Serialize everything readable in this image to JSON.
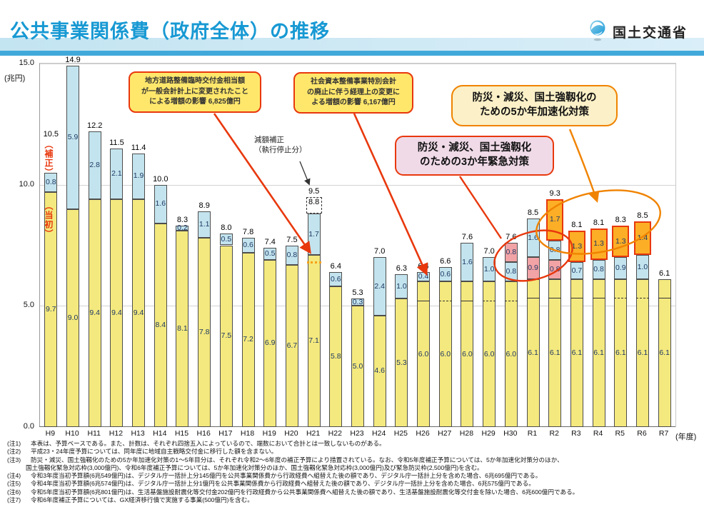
{
  "header": {
    "title": "公共事業関係費（政府全体）の推移",
    "logo_text": "国土交通省"
  },
  "chart_data": {
    "type": "bar",
    "stacked": true,
    "title": "公共事業関係費（政府全体）の推移",
    "y_axis": {
      "unit": "(兆円)",
      "ylim": [
        0,
        15
      ],
      "ticks": [
        {
          "v": 15,
          "label": "15.0"
        },
        {
          "v": 10,
          "label": "10.0"
        },
        {
          "v": 5,
          "label": "5.0"
        },
        {
          "v": 0,
          "label": "0.0"
        }
      ]
    },
    "x_axis_suffix": "(年度)",
    "legend": {
      "hosei": "（補正）",
      "initial": "（当初）"
    },
    "segment_kinds": {
      "initial": "当初",
      "hosei": "補正",
      "kinkyu": "3か年緊急対策",
      "kasoku": "5か年加速化対策"
    },
    "colors": {
      "initial": "#f4e97e",
      "hosei": "#c3e4ee",
      "kinkyu": "#f2a3a6",
      "kasoku": "#fcae26",
      "kasoku_border": "#e8380d",
      "accent_red": "#e8380d",
      "accent_orange": "#f08300",
      "title_blue": "#1899d3"
    },
    "bars": [
      {
        "year": "H9",
        "total": "10.5",
        "total_raise": 46,
        "segments": [
          {
            "kind": "initial",
            "value": 9.7,
            "label": "9.7"
          },
          {
            "kind": "hosei",
            "value": 0.8,
            "label": "0.8"
          }
        ]
      },
      {
        "year": "H10",
        "total": "14.9",
        "segments": [
          {
            "kind": "initial",
            "value": 9.0,
            "label": "9.0"
          },
          {
            "kind": "hosei",
            "value": 5.9,
            "label": "5.9"
          }
        ]
      },
      {
        "year": "H11",
        "total": "12.2",
        "segments": [
          {
            "kind": "initial",
            "value": 9.4,
            "label": "9.4"
          },
          {
            "kind": "hosei",
            "value": 2.8,
            "label": "2.8"
          }
        ]
      },
      {
        "year": "H12",
        "total": "11.5",
        "segments": [
          {
            "kind": "initial",
            "value": 9.4,
            "label": "9.4"
          },
          {
            "kind": "hosei",
            "value": 2.1,
            "label": "2.1"
          }
        ]
      },
      {
        "year": "H13",
        "total": "11.4",
        "segments": [
          {
            "kind": "initial",
            "value": 9.4,
            "label": "9.4"
          },
          {
            "kind": "hosei",
            "value": 1.9,
            "label": "1.9"
          }
        ]
      },
      {
        "year": "H14",
        "total": "10.0",
        "segments": [
          {
            "kind": "initial",
            "value": 8.4,
            "label": "8.4"
          },
          {
            "kind": "hosei",
            "value": 1.6,
            "label": "1.6"
          }
        ]
      },
      {
        "year": "H15",
        "total": "8.3",
        "segments": [
          {
            "kind": "initial",
            "value": 8.1,
            "label": "8.1"
          },
          {
            "kind": "hosei",
            "value": 0.2,
            "label": "0.2"
          }
        ]
      },
      {
        "year": "H16",
        "total": "8.9",
        "segments": [
          {
            "kind": "initial",
            "value": 7.8,
            "label": "7.8"
          },
          {
            "kind": "hosei",
            "value": 1.1,
            "label": "1.1"
          }
        ]
      },
      {
        "year": "H17",
        "total": "8.0",
        "segments": [
          {
            "kind": "initial",
            "value": 7.5,
            "label": "7.5"
          },
          {
            "kind": "hosei",
            "value": 0.5,
            "label": "0.5"
          }
        ]
      },
      {
        "year": "H18",
        "total": "7.8",
        "segments": [
          {
            "kind": "initial",
            "value": 7.2,
            "label": "7.2"
          },
          {
            "kind": "hosei",
            "value": 0.6,
            "label": "0.6"
          }
        ]
      },
      {
        "year": "H19",
        "total": "7.4",
        "segments": [
          {
            "kind": "initial",
            "value": 6.9,
            "label": "6.9"
          },
          {
            "kind": "hosei",
            "value": 0.5,
            "label": "0.5"
          }
        ]
      },
      {
        "year": "H20",
        "total": "7.5",
        "segments": [
          {
            "kind": "initial",
            "value": 6.7,
            "label": "6.7"
          },
          {
            "kind": "hosei",
            "value": 0.8,
            "label": "0.8"
          }
        ]
      },
      {
        "year": "H21",
        "total": "9.5",
        "orange_dots": true,
        "ghost": {
          "value": 0.7,
          "label": "8.8"
        },
        "segments": [
          {
            "kind": "initial",
            "value": 7.1,
            "label": "7.1"
          },
          {
            "kind": "hosei",
            "value": 1.7,
            "label": "1.7"
          }
        ]
      },
      {
        "year": "H22",
        "total": "6.4",
        "segments": [
          {
            "kind": "initial",
            "value": 5.8,
            "label": "5.8"
          },
          {
            "kind": "hosei",
            "value": 0.6,
            "label": "0.6"
          }
        ]
      },
      {
        "year": "H23",
        "total": "5.3",
        "segments": [
          {
            "kind": "initial",
            "value": 5.0,
            "label": "5.0"
          },
          {
            "kind": "hosei",
            "value": 0.3,
            "label": "0.3"
          }
        ]
      },
      {
        "year": "H24",
        "total": "7.0",
        "segments": [
          {
            "kind": "initial",
            "value": 4.6,
            "label": "4.6"
          },
          {
            "kind": "hosei",
            "value": 2.4,
            "label": "2.4"
          }
        ]
      },
      {
        "year": "H25",
        "total": "6.3",
        "segments": [
          {
            "kind": "initial",
            "value": 5.3,
            "label": "5.3"
          },
          {
            "kind": "hosei",
            "value": 1.0,
            "label": "1.0"
          }
        ]
      },
      {
        "year": "H26",
        "total": "6.4",
        "divider": "solid",
        "segments": [
          {
            "kind": "initial",
            "value": 6.0,
            "label": "6.0"
          },
          {
            "kind": "hosei",
            "value": 0.4,
            "label": "0.4"
          }
        ]
      },
      {
        "year": "H27",
        "total": "6.6",
        "divider": "dashed",
        "segments": [
          {
            "kind": "initial",
            "value": 6.0,
            "label": "6.0"
          },
          {
            "kind": "hosei",
            "value": 0.6,
            "label": "0.6"
          }
        ]
      },
      {
        "year": "H28",
        "total": "7.6",
        "divider": "solid",
        "segments": [
          {
            "kind": "initial",
            "value": 6.0,
            "label": "6.0"
          },
          {
            "kind": "hosei",
            "value": 1.6,
            "label": "1.6"
          }
        ]
      },
      {
        "year": "H29",
        "total": "7.0",
        "divider": "dashed",
        "segments": [
          {
            "kind": "initial",
            "value": 6.0,
            "label": "6.0"
          },
          {
            "kind": "hosei",
            "value": 1.0,
            "label": "1.0"
          }
        ]
      },
      {
        "year": "H30",
        "total": "7.6",
        "divider": "dashed",
        "segments": [
          {
            "kind": "initial",
            "value": 6.0,
            "label": "6.0"
          },
          {
            "kind": "hosei",
            "value": 0.8,
            "label": "0.8"
          },
          {
            "kind": "kinkyu",
            "value": 0.8,
            "label": "0.8"
          }
        ]
      },
      {
        "year": "R1",
        "total": "8.5",
        "divider": "solid",
        "segments": [
          {
            "kind": "initial",
            "value": 6.1,
            "label": "6.1"
          },
          {
            "kind": "kinkyu",
            "value": 0.9,
            "label": "0.9"
          },
          {
            "kind": "hosei",
            "value": 1.6,
            "label": "1.6"
          }
        ]
      },
      {
        "year": "R2",
        "total": "9.3",
        "divider": "solid",
        "segments": [
          {
            "kind": "initial",
            "value": 6.1,
            "label": "6.1"
          },
          {
            "kind": "kinkyu",
            "value": 0.8,
            "label": "0.8"
          },
          {
            "kind": "hosei",
            "value": 0.8,
            "label": "0.8"
          },
          {
            "kind": "kasoku",
            "value": 1.7,
            "label": "1.7"
          }
        ]
      },
      {
        "year": "R3",
        "total": "8.1",
        "divider": "solid",
        "segments": [
          {
            "kind": "initial",
            "value": 6.1,
            "label": "6.1"
          },
          {
            "kind": "hosei",
            "value": 0.7,
            "label": "0.7"
          },
          {
            "kind": "kasoku",
            "value": 1.3,
            "label": "1.3"
          }
        ]
      },
      {
        "year": "R4",
        "total": "8.1",
        "divider": "solid",
        "segments": [
          {
            "kind": "initial",
            "value": 6.1,
            "label": "6.1"
          },
          {
            "kind": "hosei",
            "value": 0.8,
            "label": "0.8"
          },
          {
            "kind": "kasoku",
            "value": 1.3,
            "label": "1.3"
          }
        ]
      },
      {
        "year": "R5",
        "total": "8.3",
        "divider": "dashed",
        "segments": [
          {
            "kind": "initial",
            "value": 6.1,
            "label": "6.1"
          },
          {
            "kind": "hosei",
            "value": 0.9,
            "label": "0.9"
          },
          {
            "kind": "kasoku",
            "value": 1.3,
            "label": "1.3"
          }
        ]
      },
      {
        "year": "R6",
        "total": "8.5",
        "divider": "dashed",
        "segments": [
          {
            "kind": "initial",
            "value": 6.1,
            "label": "6.1"
          },
          {
            "kind": "hosei",
            "value": 1.0,
            "label": "1.0"
          },
          {
            "kind": "kasoku",
            "value": 1.4,
            "label": "1.4"
          }
        ]
      },
      {
        "year": "R7",
        "total": "6.1",
        "divider": "solid",
        "segments": [
          {
            "kind": "initial",
            "value": 6.1,
            "label": "6.1"
          }
        ]
      }
    ]
  },
  "annotations": {
    "hosei_vertical_label": "（補正）",
    "tousho_vertical_label": "（当初）",
    "callout_local_road": {
      "lines": [
        "地方道路整備臨時交付金相当額",
        "が一般会計計上に変更されたこと",
        "による増額の影響 6,825億円"
      ]
    },
    "callout_special_account": {
      "lines": [
        "社会資本整備事業特別会計",
        "の廃止に伴う経理上の変更に",
        "よる増額の影響 6,167億円"
      ]
    },
    "callout_5year": {
      "lines": [
        "防災・減災、国土強靱化の",
        "ための5か年加速化対策"
      ]
    },
    "callout_3year": {
      "lines": [
        "防災・減災、国土強靱化",
        "のための3か年緊急対策"
      ]
    },
    "gengaku_note": {
      "lines": [
        "減額補正",
        "（執行停止分）"
      ]
    }
  },
  "footnotes": [
    {
      "tag": "(注1)",
      "text": "本表は、予算ベースである。また、計数は、それぞれ四捨五入によっているので、端数において合計とは一致しないものがある。"
    },
    {
      "tag": "(注2)",
      "text": "平成23・24年度予算については、同年度に地域自主戦略交付金に移行した額を含まない。"
    },
    {
      "tag": "(注3)",
      "text": "防災・減災、国土強靱化のための5か年加速化対策の1〜5年目分は、それぞれ令和2〜6年度の補正予算により措置されている。なお、令和5年度補正予算については、5か年加速化対策分のほか、"
    },
    {
      "tag": "",
      "text": "国土強靱化緊急対応枠(3,000億円)、令和6年度補正予算については、5か年加速化対策分のほか、国土強靱化緊急対応枠(3,000億円)及び緊急防災枠(2,500億円)を含む。"
    },
    {
      "tag": "(注4)",
      "text": "令和3年度当初予算額(6兆549億円)は、デジタル庁一括計上分145億円を公共事業関係費から行政経費へ組替えた後の額であり、デジタル庁一括計上分を含めた場合、6兆695億円である。"
    },
    {
      "tag": "(注5)",
      "text": "令和4年度当初予算額(6兆574億円)は、デジタル庁一括計上分1億円を公共事業関係費から行政経費へ組替えた後の額であり、デジタル庁一括計上分を含めた場合、6兆575億円である。"
    },
    {
      "tag": "(注6)",
      "text": "令和5年度当初予算額(6兆801億円)は、生活基盤施設耐震化等交付金202億円を行政経費から公共事業関係費へ組替えた後の額であり、生活基盤施設耐震化等交付金を除いた場合、6兆600億円である。"
    },
    {
      "tag": "(注7)",
      "text": "令和6年度補正予算については、GX経済移行債で実施する事業(500億円)を含む。"
    }
  ]
}
